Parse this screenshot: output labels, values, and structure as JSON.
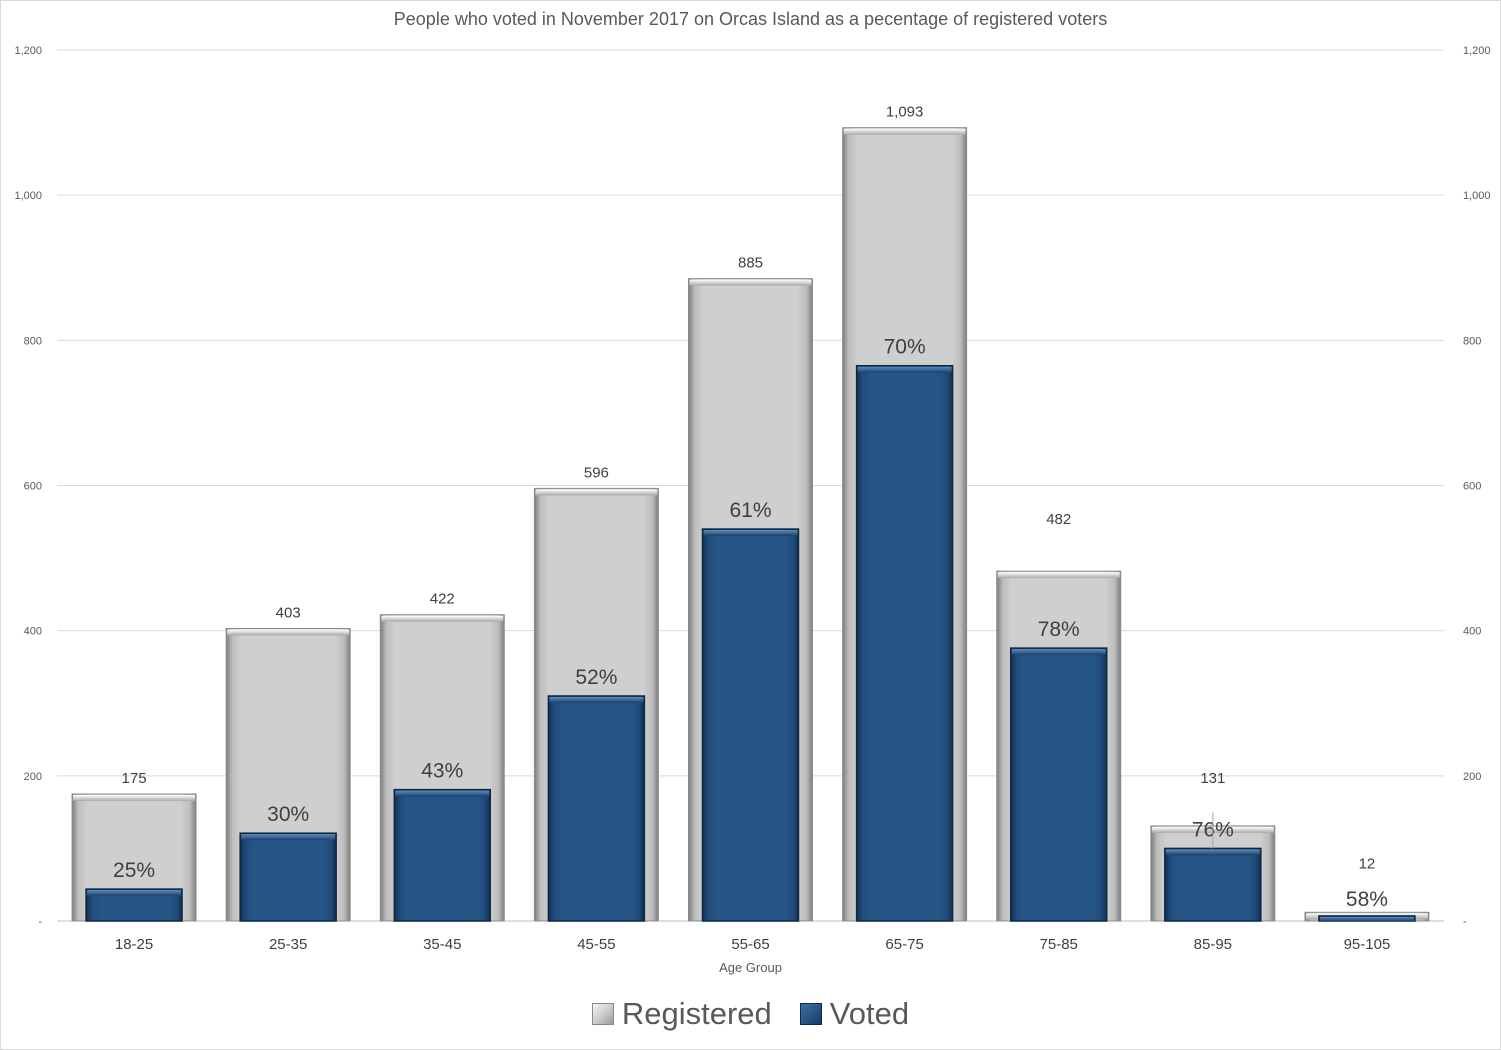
{
  "chart_data": {
    "type": "bar",
    "title": "People who voted in November 2017 on Orcas Island as a pecentage of registered voters",
    "xlabel": "Age Group",
    "ylabel": "",
    "ylim": [
      0,
      1200
    ],
    "yticks": [
      "-",
      "200",
      "400",
      "600",
      "800",
      "1,000",
      "1,200"
    ],
    "ytick_values": [
      0,
      200,
      400,
      600,
      800,
      1000,
      1200
    ],
    "grid": true,
    "legend_position": "bottom",
    "categories": [
      "18-25",
      "25-35",
      "35-45",
      "45-55",
      "55-65",
      "65-75",
      "75-85",
      "85-95",
      "95-105"
    ],
    "series": [
      {
        "name": "Registered",
        "color": "#c8c8c8",
        "values": [
          175,
          403,
          422,
          596,
          885,
          1093,
          482,
          131,
          12
        ],
        "labels": [
          "175",
          "403",
          "422",
          "596",
          "885",
          "1,093",
          "482",
          "131",
          "12"
        ]
      },
      {
        "name": "Voted",
        "color": "#24548a",
        "values": [
          44,
          121,
          181,
          310,
          540,
          765,
          376,
          100,
          7
        ],
        "labels": [
          "25%",
          "30%",
          "43%",
          "52%",
          "61%",
          "70%",
          "78%",
          "76%",
          "58%"
        ]
      }
    ]
  }
}
